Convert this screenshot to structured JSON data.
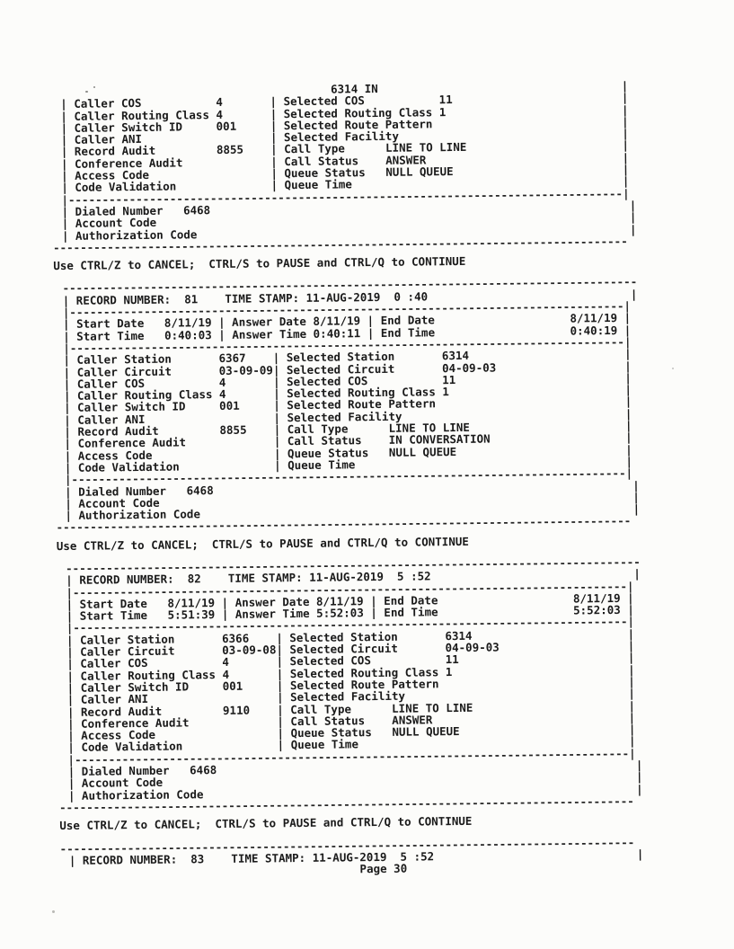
{
  "page": {
    "paper_color": "#fcfcfa",
    "ink_color": "#1a1a1a"
  },
  "doc": {
    "lines": [
      {
        "name": "partial-record-selected-id-line",
        "type": "record-id-line",
        "text": "                                        6314 IN                                    |"
      },
      {
        "name": "partial-caller-cos-row",
        "type": "field-row",
        "text": "| Caller COS           4       | Selected COS           11                         |"
      },
      {
        "name": "partial-caller-routing-class-row",
        "type": "field-row",
        "text": "| Caller Routing Class 4       | Selected Routing Class 1                          |"
      },
      {
        "name": "partial-caller-switch-id-row",
        "type": "field-row",
        "text": "| Caller Switch ID     001     | Selected Route Pattern                            |"
      },
      {
        "name": "partial-caller-ani-row",
        "type": "field-row",
        "text": "| Caller ANI                   | Selected Facility                                 |"
      },
      {
        "name": "partial-record-audit-row",
        "type": "field-row",
        "text": "| Record Audit         8855    | Call Type      LINE TO LINE                       |"
      },
      {
        "name": "partial-conference-audit-row",
        "type": "field-row",
        "text": "| Conference Audit             | Call Status    ANSWER                             |"
      },
      {
        "name": "partial-access-code-row",
        "type": "field-row",
        "text": "| Access Code                  | Queue Status   NULL QUEUE                         |"
      },
      {
        "name": "partial-code-validation-row",
        "type": "field-row",
        "text": "| Code Validation              | Queue Time                                        |"
      },
      {
        "name": "partial-fields-divider",
        "type": "inner-divider",
        "text": "|----------------------------------------------------------------------------------|"
      },
      {
        "name": "partial-dialed-number-row",
        "type": "field-row",
        "text": "| Dialed Number   6468                                                              |"
      },
      {
        "name": "partial-account-code-row",
        "type": "field-row",
        "text": "| Account Code                                                                      |"
      },
      {
        "name": "partial-authorization-code-row",
        "type": "field-row",
        "text": "| Authorization Code                                                                |"
      },
      {
        "name": "partial-record-end-divider",
        "type": "outer-divider",
        "text": "-------------------------------------------------------------------------------------"
      },
      {
        "name": "flow-control-hint-1",
        "type": "hint",
        "text": "Use CTRL/Z to CANCEL;  CTRL/S to PAUSE and CTRL/Q to CONTINUE"
      },
      {
        "name": "record-81-top-divider",
        "type": "box-divider",
        "text": "-------------------------------------------------------------------------------------"
      },
      {
        "name": "record-81-header-row",
        "type": "field-row",
        "text": "| RECORD NUMBER:  81    TIME STAMP: 11-AUG-2019  0 :40                              |"
      },
      {
        "name": "record-81-header-divider",
        "type": "inner-divider",
        "text": "|----------------------------------------------------------------------------------|"
      },
      {
        "name": "record-81-start-date-row",
        "type": "field-row",
        "text": "| Start Date   8/11/19 | Answer Date 8/11/19 | End Date                    8/11/19 |"
      },
      {
        "name": "record-81-start-time-row",
        "type": "field-row",
        "text": "| Start Time   0:40:03 | Answer Time 0:40:11 | End Time                    0:40:19 |"
      },
      {
        "name": "record-81-dates-divider",
        "type": "inner-divider",
        "text": "|----------------------------------------------------------------------------------|"
      },
      {
        "name": "record-81-caller-station-row",
        "type": "field-row",
        "text": "| Caller Station       6367    | Selected Station       6314                       |"
      },
      {
        "name": "record-81-caller-circuit-row",
        "type": "field-row",
        "text": "| Caller Circuit       03-09-09| Selected Circuit       04-09-03                   |"
      },
      {
        "name": "record-81-caller-cos-row",
        "type": "field-row",
        "text": "| Caller COS           4       | Selected COS           11                         |"
      },
      {
        "name": "record-81-caller-routing-class-row",
        "type": "field-row",
        "text": "| Caller Routing Class 4       | Selected Routing Class 1                          |"
      },
      {
        "name": "record-81-caller-switch-id-row",
        "type": "field-row",
        "text": "| Caller Switch ID     001     | Selected Route Pattern                            |"
      },
      {
        "name": "record-81-caller-ani-row",
        "type": "field-row",
        "text": "| Caller ANI                   | Selected Facility                                 |"
      },
      {
        "name": "record-81-record-audit-row",
        "type": "field-row",
        "text": "| Record Audit         8855    | Call Type      LINE TO LINE                       |"
      },
      {
        "name": "record-81-conference-audit-row",
        "type": "field-row",
        "text": "| Conference Audit             | Call Status    IN CONVERSATION                    |"
      },
      {
        "name": "record-81-access-code-row",
        "type": "field-row",
        "text": "| Access Code                  | Queue Status   NULL QUEUE                         |"
      },
      {
        "name": "record-81-code-validation-row",
        "type": "field-row",
        "text": "| Code Validation              | Queue Time                                        |"
      },
      {
        "name": "record-81-fields-divider",
        "type": "inner-divider",
        "text": "|----------------------------------------------------------------------------------|"
      },
      {
        "name": "record-81-dialed-number-row",
        "type": "field-row",
        "text": "| Dialed Number   6468                                                              |"
      },
      {
        "name": "record-81-account-code-row",
        "type": "field-row",
        "text": "| Account Code                                                                      |"
      },
      {
        "name": "record-81-authorization-code-row",
        "type": "field-row",
        "text": "| Authorization Code                                                                |"
      },
      {
        "name": "record-81-end-divider",
        "type": "outer-divider",
        "text": "-------------------------------------------------------------------------------------"
      },
      {
        "name": "flow-control-hint-2",
        "type": "hint",
        "text": "Use CTRL/Z to CANCEL;  CTRL/S to PAUSE and CTRL/Q to CONTINUE"
      },
      {
        "name": "record-82-top-divider",
        "type": "box-divider",
        "text": "-------------------------------------------------------------------------------------"
      },
      {
        "name": "record-82-header-row",
        "type": "field-row",
        "text": "| RECORD NUMBER:  82    TIME STAMP: 11-AUG-2019  5 :52                              |"
      },
      {
        "name": "record-82-header-divider",
        "type": "inner-divider",
        "text": "|----------------------------------------------------------------------------------|"
      },
      {
        "name": "record-82-start-date-row",
        "type": "field-row",
        "text": "| Start Date   8/11/19 | Answer Date 8/11/19 | End Date                    8/11/19 |"
      },
      {
        "name": "record-82-start-time-row",
        "type": "field-row",
        "text": "| Start Time   5:51:39 | Answer Time 5:52:03 | End Time                    5:52:03 |"
      },
      {
        "name": "record-82-dates-divider",
        "type": "inner-divider",
        "text": "|----------------------------------------------------------------------------------|"
      },
      {
        "name": "record-82-caller-station-row",
        "type": "field-row",
        "text": "| Caller Station       6366    | Selected Station       6314                       |"
      },
      {
        "name": "record-82-caller-circuit-row",
        "type": "field-row",
        "text": "| Caller Circuit       03-09-08| Selected Circuit       04-09-03                   |"
      },
      {
        "name": "record-82-caller-cos-row",
        "type": "field-row",
        "text": "| Caller COS           4       | Selected COS           11                         |"
      },
      {
        "name": "record-82-caller-routing-class-row",
        "type": "field-row",
        "text": "| Caller Routing Class 4       | Selected Routing Class 1                          |"
      },
      {
        "name": "record-82-caller-switch-id-row",
        "type": "field-row",
        "text": "| Caller Switch ID     001     | Selected Route Pattern                            |"
      },
      {
        "name": "record-82-caller-ani-row",
        "type": "field-row",
        "text": "| Caller ANI                   | Selected Facility                                 |"
      },
      {
        "name": "record-82-record-audit-row",
        "type": "field-row",
        "text": "| Record Audit         9110    | Call Type      LINE TO LINE                       |"
      },
      {
        "name": "record-82-conference-audit-row",
        "type": "field-row",
        "text": "| Conference Audit             | Call Status    ANSWER                             |"
      },
      {
        "name": "record-82-access-code-row",
        "type": "field-row",
        "text": "| Access Code                  | Queue Status   NULL QUEUE                         |"
      },
      {
        "name": "record-82-code-validation-row",
        "type": "field-row",
        "text": "| Code Validation              | Queue Time                                        |"
      },
      {
        "name": "record-82-fields-divider",
        "type": "inner-divider",
        "text": "|----------------------------------------------------------------------------------|"
      },
      {
        "name": "record-82-dialed-number-row",
        "type": "field-row",
        "text": "| Dialed Number   6468                                                              |"
      },
      {
        "name": "record-82-account-code-row",
        "type": "field-row",
        "text": "| Account Code                                                                      |"
      },
      {
        "name": "record-82-authorization-code-row",
        "type": "field-row",
        "text": "| Authorization Code                                                                |"
      },
      {
        "name": "record-82-end-divider",
        "type": "outer-divider",
        "text": "-------------------------------------------------------------------------------------"
      },
      {
        "name": "flow-control-hint-3",
        "type": "hint",
        "text": "Use CTRL/Z to CANCEL;  CTRL/S to PAUSE and CTRL/Q to CONTINUE"
      },
      {
        "name": "record-83-top-divider",
        "type": "outer-divider",
        "text": "-------------------------------------------------------------------------------------"
      },
      {
        "name": "record-83-header-row",
        "type": "field-row",
        "text": "| RECORD NUMBER:  83    TIME STAMP: 11-AUG-2019  5 :52                              |"
      },
      {
        "name": "page-number-line",
        "type": "page-number",
        "text": "                                           Page 30"
      }
    ]
  }
}
